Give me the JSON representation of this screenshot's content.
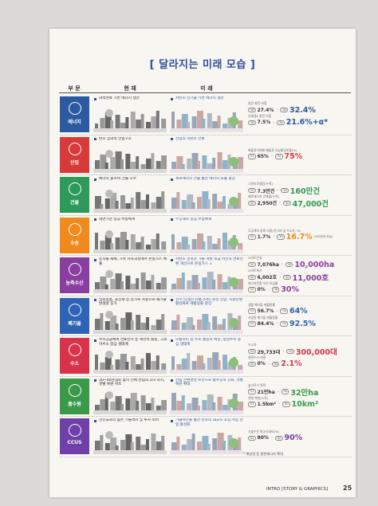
{
  "title": "[ 달라지는 미래 모습 ]",
  "headers": [
    "부 문",
    "현 재",
    "미 래"
  ],
  "rows": [
    {
      "sector": "에너지",
      "color": "#2c5aa0",
      "current": "화석연료 기반 에너지 생산",
      "future": "저탄소 신기술 기반 에너지 생산",
      "stats": [
        {
          "label": "원전·발전 비중",
          "from_year": "'18",
          "from_value": "27.4%",
          "to_year": "'30",
          "to_value": "32.4%"
        },
        {
          "label": "신재생e 발전 비중",
          "from_year": "'18",
          "from_value": "7.5%",
          "to_year": "'30",
          "to_value": "21.6%+α*"
        }
      ]
    },
    {
      "sector": "산업",
      "color": "#d83a3a",
      "current": "탄소 집약적 산업구조",
      "future": "산업의 저탄소 전환",
      "stats": [
        {
          "label": "배출권거래제 배출권 유상할당비율(%)",
          "from_year": "'21",
          "from_value": "65%",
          "to_year": "'30",
          "to_value": "75%"
        }
      ]
    },
    {
      "sector": "건물",
      "color": "#2e9a5a",
      "current": "에너지 多소비 건물 다수",
      "future": "제로에너지 건물 통한 에너지 효율 향상",
      "stats": [
        {
          "label": "그린리모델링(누적)",
          "from_year": "'20",
          "from_value": "7.3만건",
          "to_year": "'30",
          "to_value": "160만건"
        },
        {
          "label": "제로에너지 건축물(누적)",
          "from_year": "'20",
          "from_value": "2,950건",
          "to_year": "'30",
          "to_value": "47,000건"
        }
      ]
    },
    {
      "sector": "수송",
      "color": "#f08a1c",
      "current": "내연기관 중심 수송체계",
      "future": "무공해차 중심 수송체계",
      "stats": [
        {
          "label": "무공해차 등록 비중(전기차 및 수소차, %)",
          "from_year": "'20",
          "from_value": "1.7%",
          "to_year": "'30",
          "to_value": "16.7%",
          "note": "(450만대 보급)"
        }
      ]
    },
    {
      "sector": "농축수산",
      "color": "#8a3fa0",
      "current": "농작물 재배, 가축 사육과정에서 온실가스 배출",
      "future": "저탄소 농축산 기술 개발 보급 어선의 연료전환 개선으로 온실가스 ↓",
      "stats": [
        {
          "label": "스마트온실",
          "from_year": "'20",
          "from_value": "7,076ha",
          "to_year": "'30",
          "to_value": "10,000ha"
        },
        {
          "label": "스마트축사",
          "from_year": "'20",
          "from_value": "6,002호",
          "to_year": "'30",
          "to_value": "11,000호"
        },
        {
          "label": "에너지전환 어선 보급률",
          "from_year": "'20",
          "from_value": "0%",
          "to_year": "'30",
          "to_value": "30%"
        }
      ]
    },
    {
      "sector": "폐기물",
      "color": "#2f63b5",
      "current": "일회용품, 포장재 등 증가로 사용으로 폐기물 발생량 증가",
      "future": "전주기(생산·유통·소비) 원천 감량, 자원순환 활성화로 재활용률 향상",
      "stats": [
        {
          "label": "생활 폐기물 재활용률",
          "from_year": "'20",
          "from_value": "56.7%",
          "to_year": "'30",
          "to_value": "64%"
        },
        {
          "label": "사업장 폐기물 재활용률",
          "from_year": "'20",
          "from_value": "84.4%",
          "to_year": "'30",
          "to_value": "92.5%"
        }
      ]
    },
    {
      "sector": "수소",
      "color": "#d8334a",
      "current": "수소공급체계 연료전지 등 제한적 활용, 그레이수소 중심 생태계",
      "future": "모빌리티 등 수소 활용처 확장, 청정수소 중심 생태계",
      "stats": [
        {
          "label": "수소차",
          "from_year": "'20",
          "from_value": "29,733대",
          "to_year": "'30",
          "to_value": "300,000대"
        },
        {
          "label": "청정수소 비중",
          "from_year": "'20",
          "from_value": "0%",
          "to_year": "'30",
          "to_value": "2.1%"
        }
      ]
    },
    {
      "sector": "흡수원",
      "color": "#3a9a4a",
      "current": "30~40년대로 숲이 전체 산림의 2/3 차지, 갯벌 복원 저조",
      "future": "산림 순환경영 보전으로 흡수능력 강화, 갯벌 복원 확대",
      "stats": [
        {
          "label": "숲가꾸기 면적",
          "from_year": "'21",
          "from_value": "21만ha",
          "to_year": "'30",
          "to_value": "32만ha"
        },
        {
          "label": "갯벌 복원(누적)",
          "from_year": "'21",
          "from_value": "1.5km²",
          "to_year": "'30",
          "to_value": "10km²"
        }
      ]
    },
    {
      "sector": "CCUS",
      "color": "#7040a8",
      "current": "선진국과의 높은 기술격차 및 투자 미비",
      "future": "기술혁신을 통한 탄소의 대규모 포집·저장 산업 활성화",
      "stats": [
        {
          "label": "기술수준 최고국대비(%)",
          "from_year": "'21",
          "from_value": "80%",
          "to_year": "'30",
          "to_value": "90%"
        }
      ]
    }
  ],
  "footnote": "* 해양생 등 원천에너지 확대",
  "footer": {
    "section": "INTRO [STORY & GRAPHICS]",
    "page": "25"
  }
}
